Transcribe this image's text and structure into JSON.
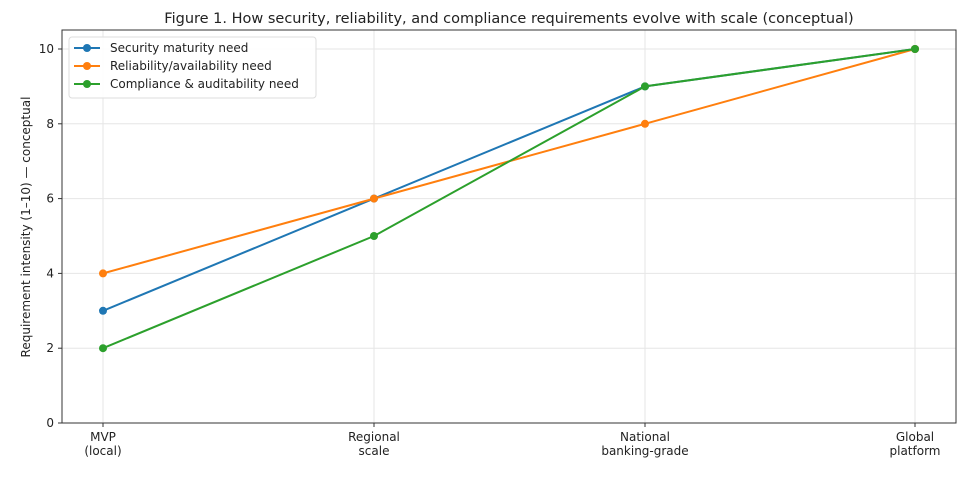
{
  "chart_data": {
    "type": "line",
    "title": "Figure 1. How security, reliability, and compliance requirements evolve with scale (conceptual)",
    "xlabel": "",
    "ylabel": "Requirement intensity (1–10) — conceptual",
    "categories": [
      [
        "MVP",
        "(local)"
      ],
      [
        "Regional",
        "scale"
      ],
      [
        "National",
        "banking-grade"
      ],
      [
        "Global",
        "platform"
      ]
    ],
    "ylim": [
      0,
      10.6
    ],
    "yticks": [
      0,
      2,
      4,
      6,
      8,
      10
    ],
    "grid": true,
    "legend_position": "top-left",
    "series": [
      {
        "name": "Security maturity need",
        "color": "#1f77b4",
        "values": [
          3,
          6,
          9,
          10
        ]
      },
      {
        "name": "Reliability/availability need",
        "color": "#ff7f0e",
        "values": [
          4,
          6,
          8,
          10
        ]
      },
      {
        "name": "Compliance & auditability need",
        "color": "#2ca02c",
        "values": [
          2,
          5,
          9,
          10
        ]
      }
    ]
  }
}
